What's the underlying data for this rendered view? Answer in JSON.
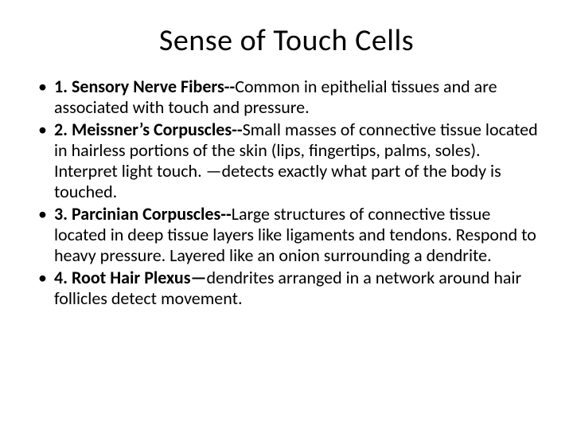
{
  "background_color": "#ffffff",
  "text_color": "#000000",
  "title_fontsize": 38,
  "body_fontsize": 22,
  "font_family": "Calibri, 'Segoe UI', Arial, sans-serif",
  "title": "Sense of Touch Cells",
  "bullets": [
    {
      "lead": "1. Sensory Nerve Fibers--",
      "rest": "Common in epithelial tissues and are associated with touch and pressure."
    },
    {
      "lead": "2. Meissner’s Corpuscles--",
      "rest": "Small masses of connective tissue located in hairless portions of the skin (lips, fingertips, palms, soles). Interpret light touch. —detects exactly what part of the body is touched."
    },
    {
      "lead": "3. Parcinian Corpuscles--",
      "rest": "Large structures of connective tissue located in deep tissue layers like ligaments and tendons. Respond to heavy pressure. Layered like an onion surrounding a dendrite."
    },
    {
      "lead": "4. Root Hair Plexus—",
      "rest": "dendrites arranged in a network around hair follicles detect movement."
    }
  ]
}
